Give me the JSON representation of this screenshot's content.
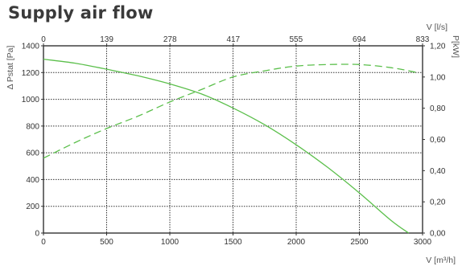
{
  "chart_data": {
    "type": "line",
    "title": "Supply air flow",
    "x_bottom": {
      "label": "V [m³/h]",
      "lim": [
        0,
        3000
      ],
      "ticks": [
        0,
        500,
        1000,
        1500,
        2000,
        2500,
        3000
      ],
      "tick_labels": [
        "0",
        "500",
        "1000",
        "1500",
        "2000",
        "2500",
        "3000"
      ]
    },
    "x_top": {
      "label": "V [l/s]",
      "lim": [
        0,
        833
      ],
      "ticks": [
        0,
        139,
        278,
        417,
        555,
        694,
        833
      ],
      "tick_labels": [
        "0",
        "139",
        "278",
        "417",
        "555",
        "694",
        "833"
      ]
    },
    "y_left": {
      "label": "Δ Pstat [Pa]",
      "lim": [
        0,
        1400
      ],
      "ticks": [
        0,
        200,
        400,
        600,
        800,
        1000,
        1200,
        1400
      ],
      "tick_labels": [
        "0",
        "200",
        "400",
        "600",
        "800",
        "1000",
        "1200",
        "1400"
      ]
    },
    "y_right": {
      "label": "P[kW]",
      "lim": [
        0,
        1.2
      ],
      "ticks": [
        0,
        0.2,
        0.4,
        0.6,
        0.8,
        1.0,
        1.2
      ],
      "tick_labels": [
        "0,00",
        "0,20",
        "0,40",
        "0,60",
        "0,80",
        "1,00",
        "1,20"
      ]
    },
    "grid": {
      "horizontal": true,
      "vertical": true,
      "horizontal_y_left": [
        200,
        400,
        600,
        800,
        1000,
        1200
      ],
      "vertical_x_bottom": [
        500,
        1000,
        1500,
        2000,
        2500
      ]
    },
    "series": [
      {
        "axis": "left",
        "style": "solid",
        "color": "#5bbf4b",
        "x": [
          0,
          250,
          500,
          750,
          1000,
          1250,
          1500,
          1750,
          2000,
          2250,
          2500,
          2750,
          2890
        ],
        "y": [
          1300,
          1270,
          1225,
          1175,
          1115,
          1040,
          935,
          810,
          660,
          490,
          300,
          95,
          0
        ]
      },
      {
        "axis": "right",
        "style": "dashed",
        "color": "#5bbf4b",
        "x": [
          0,
          250,
          500,
          750,
          1000,
          1250,
          1500,
          1750,
          2000,
          2250,
          2500,
          2750,
          2950
        ],
        "y": [
          0.48,
          0.58,
          0.67,
          0.75,
          0.84,
          0.92,
          1.0,
          1.04,
          1.07,
          1.08,
          1.08,
          1.06,
          1.03
        ]
      }
    ]
  }
}
